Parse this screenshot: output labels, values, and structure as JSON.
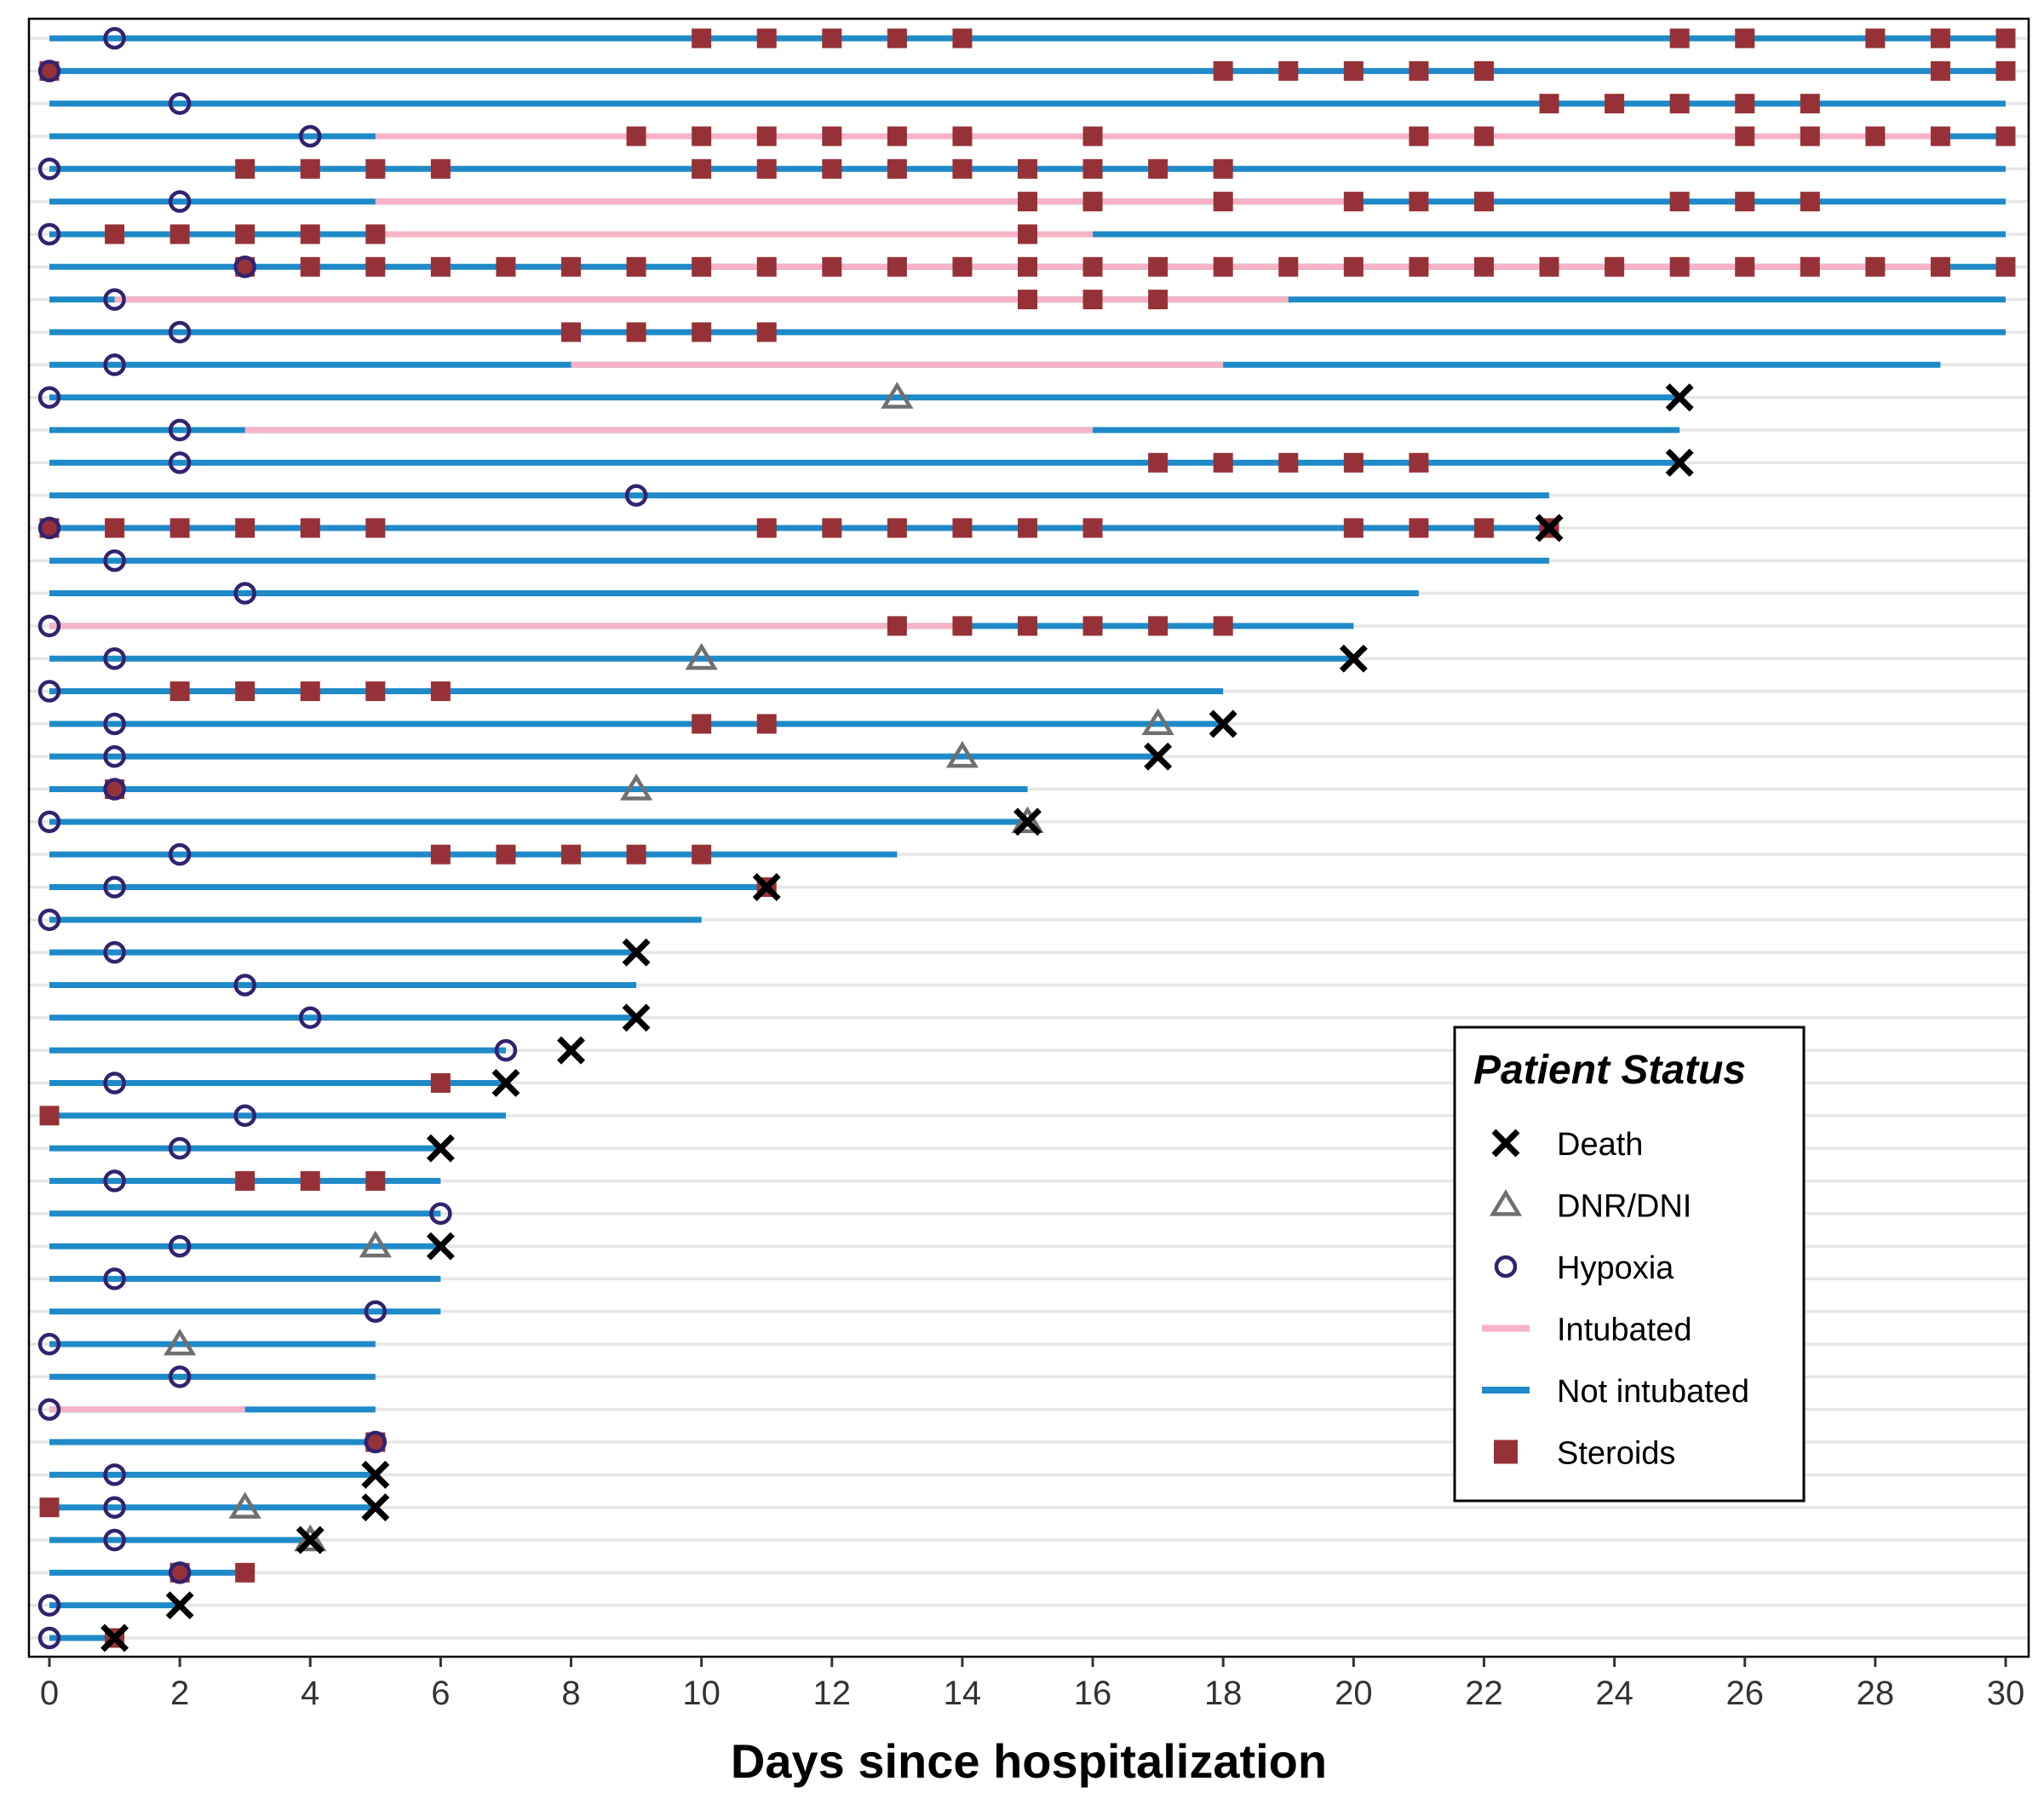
{
  "chart_data": {
    "type": "swimlane",
    "xlabel": "Days since hospitalization",
    "xlim": [
      0,
      30
    ],
    "xticks": [
      0,
      2,
      4,
      6,
      8,
      10,
      12,
      14,
      16,
      18,
      20,
      22,
      24,
      26,
      28,
      30
    ],
    "grid": "horizontal lines per patient",
    "legend": {
      "title": "Patient Status",
      "position": "bottom-right",
      "entries": [
        {
          "label": "Death",
          "kind": "death"
        },
        {
          "label": "DNR/DNI",
          "kind": "dnr"
        },
        {
          "label": "Hypoxia",
          "kind": "hypoxia"
        },
        {
          "label": "Intubated",
          "kind": "intubated"
        },
        {
          "label": "Not intubated",
          "kind": "notintubated"
        },
        {
          "label": "Steroids",
          "kind": "steroids"
        }
      ]
    },
    "colors": {
      "not_intubated": "#1f8ac8",
      "intubated": "#f7b3c6",
      "steroids": "#963237",
      "hypoxia": "#33226e",
      "dnr": "#707070",
      "death": "#000000",
      "grid": "#e6e6e6"
    },
    "patients": [
      {
        "end": 30,
        "intubated": [],
        "steroids": [
          10,
          11,
          12,
          13,
          14,
          25,
          26,
          28,
          29,
          30
        ],
        "hypoxia": [
          1
        ],
        "dnr": null,
        "death": null
      },
      {
        "end": 30,
        "intubated": [],
        "steroids": [
          0,
          18,
          19,
          20,
          21,
          22,
          29,
          30
        ],
        "hypoxia": [
          0
        ],
        "dnr": null,
        "death": null
      },
      {
        "end": 30,
        "intubated": [],
        "steroids": [
          23,
          24,
          25,
          26,
          27
        ],
        "hypoxia": [
          2
        ],
        "dnr": null,
        "death": null
      },
      {
        "end": 30,
        "intubated": [
          [
            5,
            29
          ]
        ],
        "steroids": [
          9,
          10,
          11,
          12,
          13,
          14,
          16,
          21,
          22,
          26,
          27,
          28,
          29,
          30
        ],
        "hypoxia": [
          4
        ],
        "dnr": null,
        "death": null
      },
      {
        "end": 30,
        "intubated": [],
        "steroids": [
          3,
          4,
          5,
          6,
          10,
          11,
          12,
          13,
          14,
          15,
          16,
          17,
          18
        ],
        "hypoxia": [
          0
        ],
        "dnr": null,
        "death": null
      },
      {
        "end": 30,
        "intubated": [
          [
            5,
            20
          ]
        ],
        "steroids": [
          15,
          16,
          18,
          20,
          21,
          22,
          25,
          26,
          27
        ],
        "hypoxia": [
          2
        ],
        "dnr": null,
        "death": null
      },
      {
        "end": 30,
        "intubated": [
          [
            5,
            16
          ]
        ],
        "steroids": [
          1,
          2,
          3,
          4,
          5,
          15
        ],
        "hypoxia": [
          0
        ],
        "dnr": null,
        "death": null
      },
      {
        "end": 30,
        "intubated": [
          [
            10,
            29
          ]
        ],
        "steroids": [
          3,
          4,
          5,
          6,
          7,
          8,
          9,
          10,
          11,
          12,
          13,
          14,
          15,
          16,
          17,
          18,
          19,
          20,
          21,
          22,
          23,
          24,
          25,
          26,
          27,
          28,
          29,
          30
        ],
        "hypoxia": [
          3
        ],
        "dnr": null,
        "death": null
      },
      {
        "end": 30,
        "intubated": [
          [
            1,
            19
          ]
        ],
        "steroids": [
          15,
          16,
          17
        ],
        "hypoxia": [
          1
        ],
        "dnr": null,
        "death": null
      },
      {
        "end": 30,
        "intubated": [],
        "steroids": [
          8,
          9,
          10,
          11
        ],
        "hypoxia": [
          2
        ],
        "dnr": null,
        "death": null
      },
      {
        "end": 29,
        "intubated": [
          [
            8,
            18
          ]
        ],
        "steroids": [],
        "hypoxia": [
          1
        ],
        "dnr": null,
        "death": null
      },
      {
        "end": 25,
        "intubated": [],
        "steroids": [],
        "hypoxia": [
          0
        ],
        "dnr": 13,
        "death": 25
      },
      {
        "end": 25,
        "intubated": [
          [
            3,
            16
          ]
        ],
        "steroids": [],
        "hypoxia": [
          2
        ],
        "dnr": null,
        "death": null
      },
      {
        "end": 25,
        "intubated": [],
        "steroids": [
          17,
          18,
          19,
          20,
          21
        ],
        "hypoxia": [
          2
        ],
        "dnr": null,
        "death": 25
      },
      {
        "end": 23,
        "intubated": [],
        "steroids": [],
        "hypoxia": [
          9
        ],
        "dnr": null,
        "death": null
      },
      {
        "end": 23,
        "intubated": [],
        "steroids": [
          0,
          1,
          2,
          3,
          4,
          5,
          11,
          12,
          13,
          14,
          15,
          16,
          20,
          21,
          22,
          23
        ],
        "hypoxia": [
          0
        ],
        "dnr": null,
        "death": 23
      },
      {
        "end": 23,
        "intubated": [],
        "steroids": [],
        "hypoxia": [
          1
        ],
        "dnr": null,
        "death": null
      },
      {
        "end": 21,
        "intubated": [],
        "steroids": [],
        "hypoxia": [
          3
        ],
        "dnr": null,
        "death": null
      },
      {
        "end": 20,
        "intubated": [
          [
            0,
            14
          ]
        ],
        "steroids": [
          13,
          14,
          15,
          16,
          17,
          18
        ],
        "hypoxia": [
          0
        ],
        "dnr": null,
        "death": null
      },
      {
        "end": 20,
        "intubated": [],
        "steroids": [],
        "hypoxia": [
          1
        ],
        "dnr": 10,
        "death": 20
      },
      {
        "end": 18,
        "intubated": [],
        "steroids": [
          2,
          3,
          4,
          5,
          6
        ],
        "hypoxia": [
          0
        ],
        "dnr": null,
        "death": null
      },
      {
        "end": 18,
        "intubated": [],
        "steroids": [
          10,
          11
        ],
        "hypoxia": [
          1
        ],
        "dnr": 17,
        "death": 18
      },
      {
        "end": 17,
        "intubated": [],
        "steroids": [],
        "hypoxia": [
          1
        ],
        "dnr": 14,
        "death": 17
      },
      {
        "end": 15,
        "intubated": [],
        "steroids": [
          1
        ],
        "hypoxia": [
          1
        ],
        "dnr": 9,
        "death": null
      },
      {
        "end": 15,
        "intubated": [],
        "steroids": [],
        "hypoxia": [
          0
        ],
        "dnr": 15,
        "death": 15
      },
      {
        "end": 13,
        "intubated": [],
        "steroids": [
          6,
          7,
          8,
          9,
          10
        ],
        "hypoxia": [
          2
        ],
        "dnr": null,
        "death": null
      },
      {
        "end": 11,
        "intubated": [],
        "steroids": [
          11
        ],
        "hypoxia": [
          1
        ],
        "dnr": null,
        "death": 11
      },
      {
        "end": 10,
        "intubated": [],
        "steroids": [],
        "hypoxia": [
          0
        ],
        "dnr": null,
        "death": null
      },
      {
        "end": 9,
        "intubated": [],
        "steroids": [],
        "hypoxia": [
          1
        ],
        "dnr": null,
        "death": 9
      },
      {
        "end": 9,
        "intubated": [],
        "steroids": [],
        "hypoxia": [
          3
        ],
        "dnr": null,
        "death": null
      },
      {
        "end": 9,
        "intubated": [],
        "steroids": [],
        "hypoxia": [
          4
        ],
        "dnr": null,
        "death": 9
      },
      {
        "end": 7,
        "intubated": [],
        "steroids": [],
        "hypoxia": [
          7
        ],
        "dnr": null,
        "death": 8
      },
      {
        "end": 7,
        "intubated": [],
        "steroids": [
          6
        ],
        "hypoxia": [
          1
        ],
        "dnr": null,
        "death": 7
      },
      {
        "end": 7,
        "intubated": [],
        "steroids": [
          0
        ],
        "hypoxia": [
          3
        ],
        "dnr": null,
        "death": null
      },
      {
        "end": 6,
        "intubated": [],
        "steroids": [],
        "hypoxia": [
          2
        ],
        "dnr": null,
        "death": 6
      },
      {
        "end": 6,
        "intubated": [],
        "steroids": [
          3,
          4,
          5
        ],
        "hypoxia": [
          1
        ],
        "dnr": null,
        "death": null
      },
      {
        "end": 6,
        "intubated": [],
        "steroids": [],
        "hypoxia": [
          6
        ],
        "dnr": null,
        "death": null
      },
      {
        "end": 6,
        "intubated": [],
        "steroids": [],
        "hypoxia": [
          2
        ],
        "dnr": 5,
        "death": 6
      },
      {
        "end": 6,
        "intubated": [],
        "steroids": [],
        "hypoxia": [
          1
        ],
        "dnr": null,
        "death": null
      },
      {
        "end": 6,
        "intubated": [],
        "steroids": [],
        "hypoxia": [
          5
        ],
        "dnr": null,
        "death": null
      },
      {
        "end": 5,
        "intubated": [],
        "steroids": [],
        "hypoxia": [
          0
        ],
        "dnr": 2,
        "death": null
      },
      {
        "end": 5,
        "intubated": [],
        "steroids": [],
        "hypoxia": [
          2
        ],
        "dnr": null,
        "death": null
      },
      {
        "end": 5,
        "intubated": [
          [
            0,
            3
          ]
        ],
        "steroids": [],
        "hypoxia": [
          0
        ],
        "dnr": null,
        "death": null
      },
      {
        "end": 5,
        "intubated": [],
        "steroids": [
          5
        ],
        "hypoxia": [
          5
        ],
        "dnr": null,
        "death": null
      },
      {
        "end": 5,
        "intubated": [],
        "steroids": [],
        "hypoxia": [
          1
        ],
        "dnr": null,
        "death": 5
      },
      {
        "end": 5,
        "intubated": [],
        "steroids": [
          0
        ],
        "hypoxia": [
          1
        ],
        "dnr": 3,
        "death": 5
      },
      {
        "end": 4,
        "intubated": [],
        "steroids": [],
        "hypoxia": [
          1
        ],
        "dnr": 4,
        "death": 4
      },
      {
        "end": 3,
        "intubated": [],
        "steroids": [
          2,
          3
        ],
        "hypoxia": [
          2
        ],
        "dnr": null,
        "death": null
      },
      {
        "end": 2,
        "intubated": [],
        "steroids": [],
        "hypoxia": [
          0
        ],
        "dnr": null,
        "death": 2
      },
      {
        "end": 1,
        "intubated": [],
        "steroids": [
          1
        ],
        "hypoxia": [
          0
        ],
        "dnr": null,
        "death": 1
      }
    ]
  }
}
